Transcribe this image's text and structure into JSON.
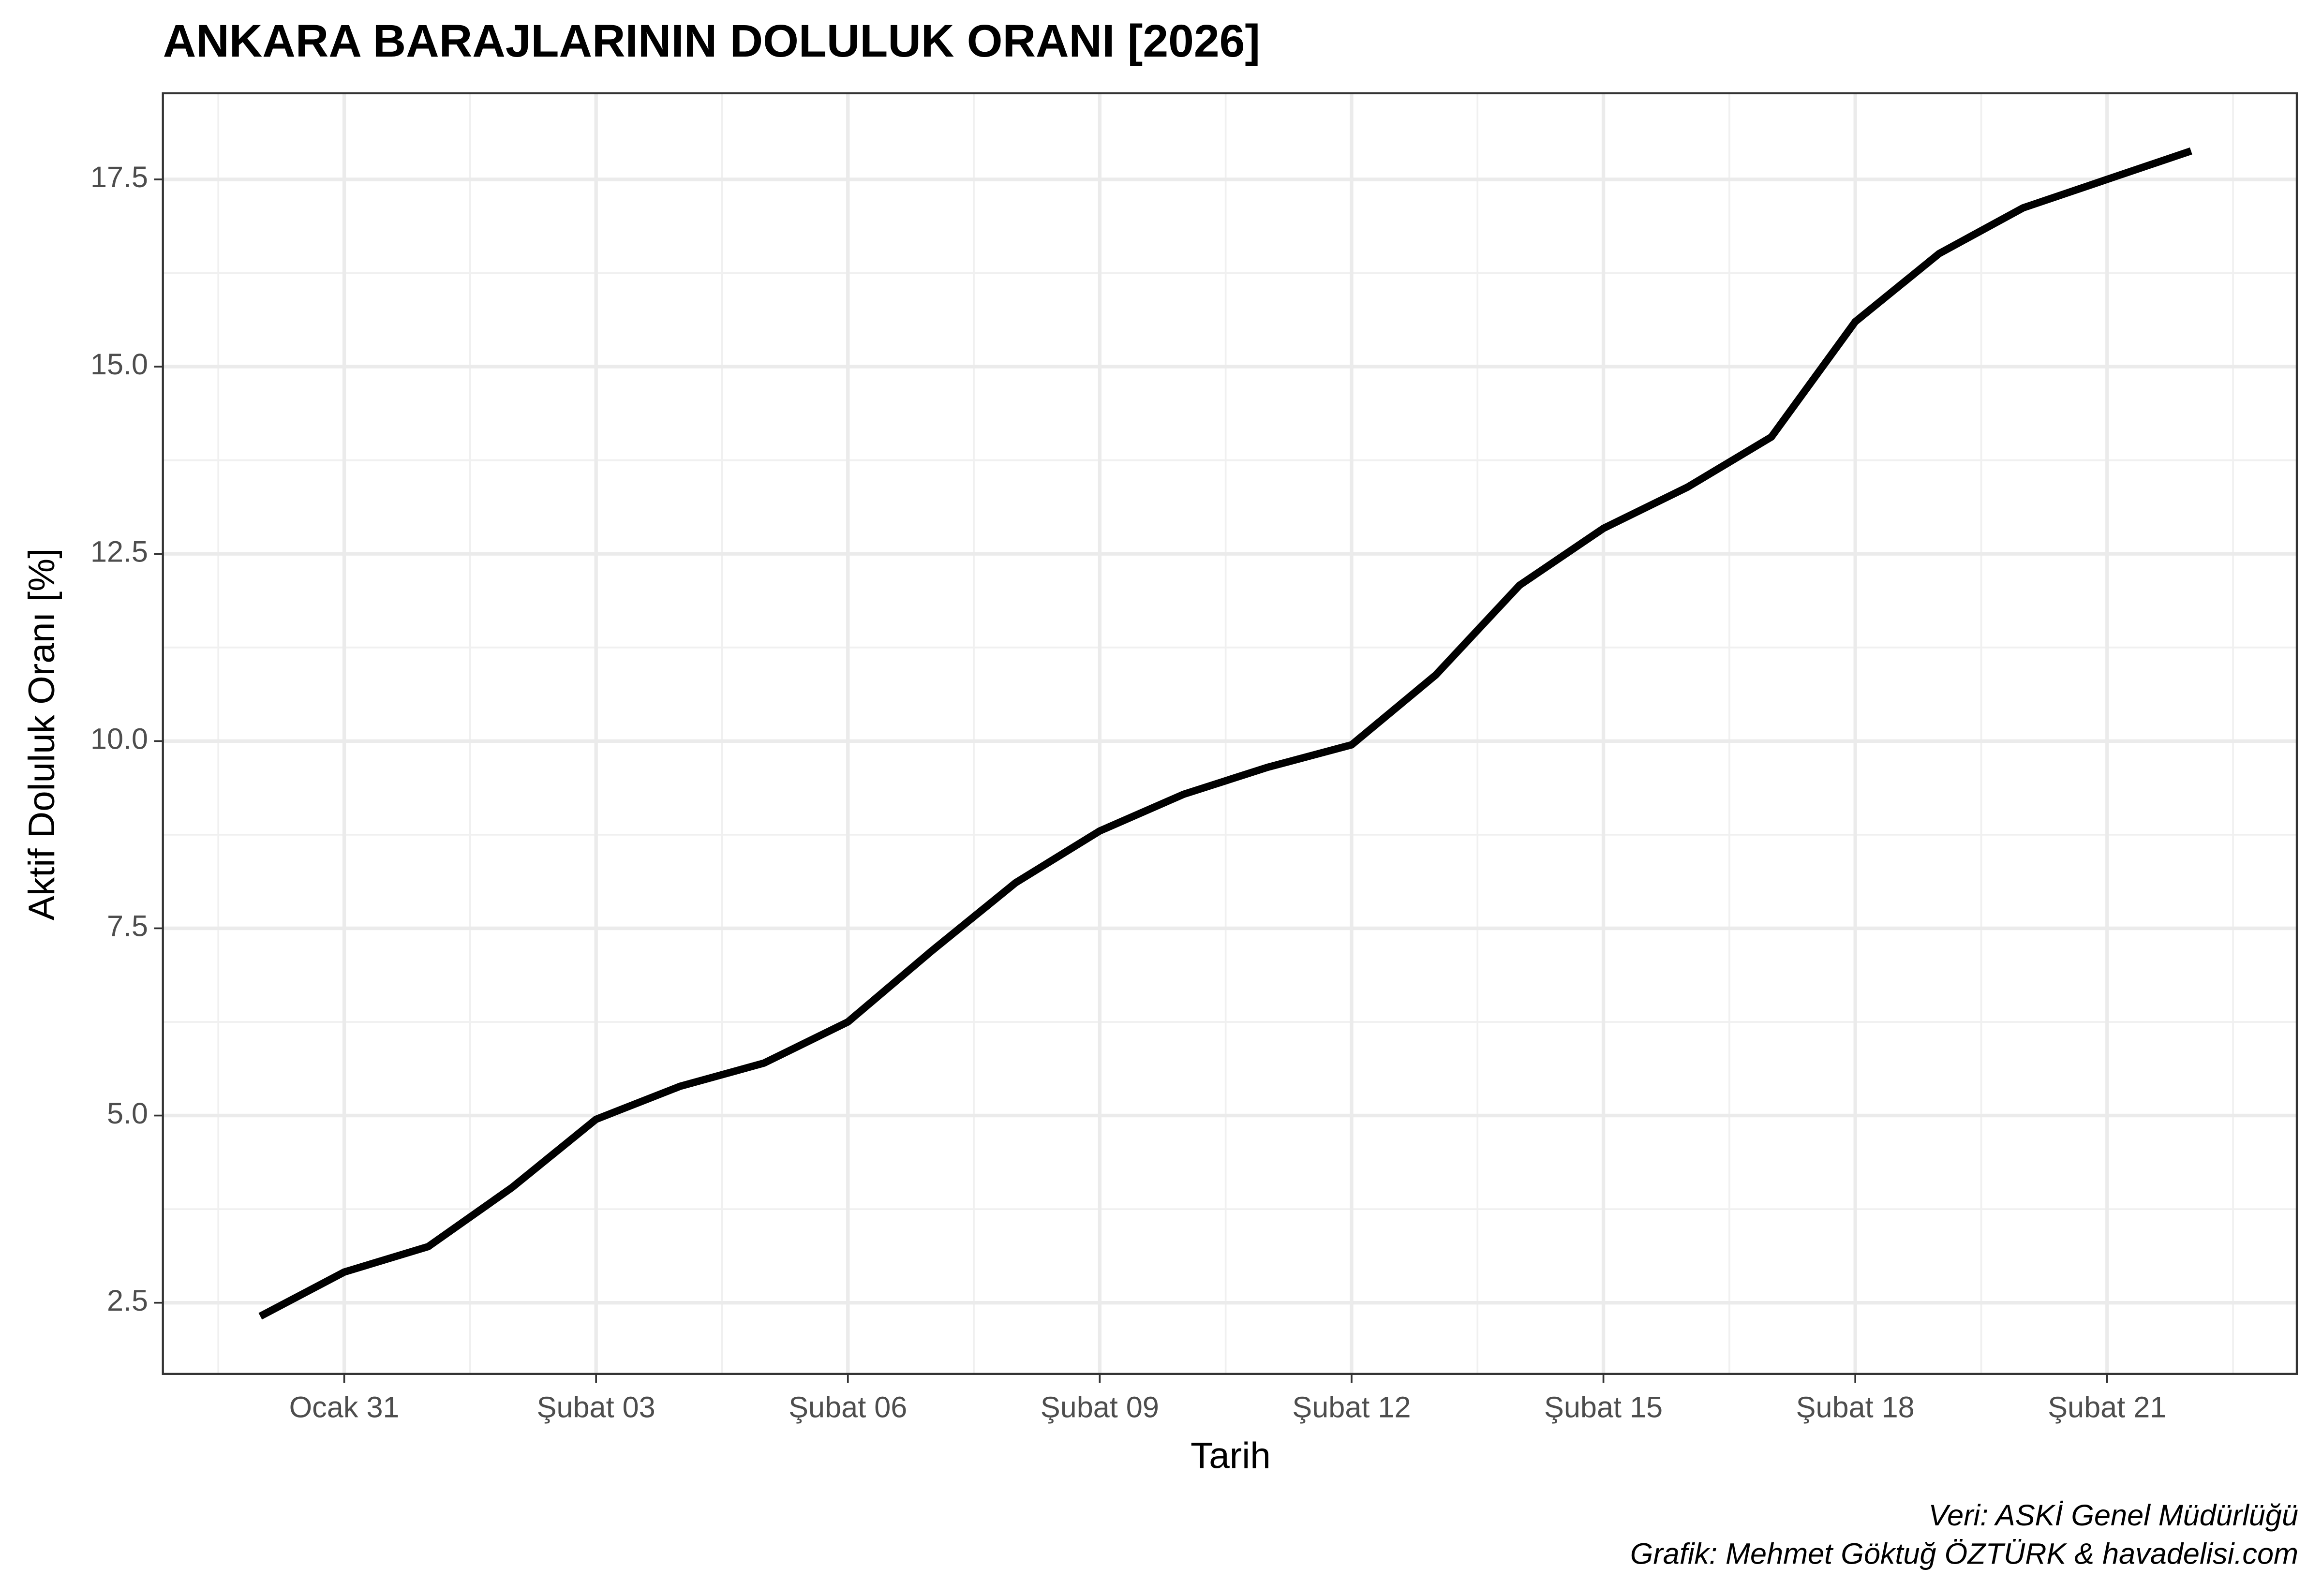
{
  "chart_data": {
    "type": "line",
    "title": "ANKARA BARAJLARININ DOLULUK ORANI [2026]",
    "xlabel": "Tarih",
    "ylabel": "Aktif Doluluk Oranı [%]",
    "caption": [
      "Veri: ASKİ Genel Müdürlüğü",
      "Grafik: Mehmet Göktuğ ÖZTÜRK & havadelisi.com"
    ],
    "categories": [
      null,
      "Ocak 31",
      null,
      null,
      "Şubat 03",
      null,
      null,
      "Şubat 06",
      null,
      null,
      "Şubat 09",
      null,
      null,
      "Şubat 12",
      null,
      null,
      "Şubat 15",
      null,
      null,
      "Şubat 18",
      null,
      null,
      "Şubat 21",
      null
    ],
    "values": [
      2.32,
      2.91,
      3.25,
      4.04,
      4.95,
      5.39,
      5.7,
      6.25,
      7.2,
      8.11,
      8.8,
      9.29,
      9.65,
      9.95,
      10.88,
      12.08,
      12.84,
      13.39,
      14.06,
      15.6,
      16.51,
      17.12,
      17.5,
      17.88
    ],
    "color": "#000000",
    "ylim": [
      1.55,
      18.65
    ],
    "yticks": [
      2.5,
      {
        "value": 5,
        "label": "5.0"
      },
      7.5,
      {
        "value": 10,
        "label": "10.0"
      },
      12.5,
      {
        "value": 15,
        "label": "15.0"
      },
      17.5
    ],
    "grid": true
  }
}
